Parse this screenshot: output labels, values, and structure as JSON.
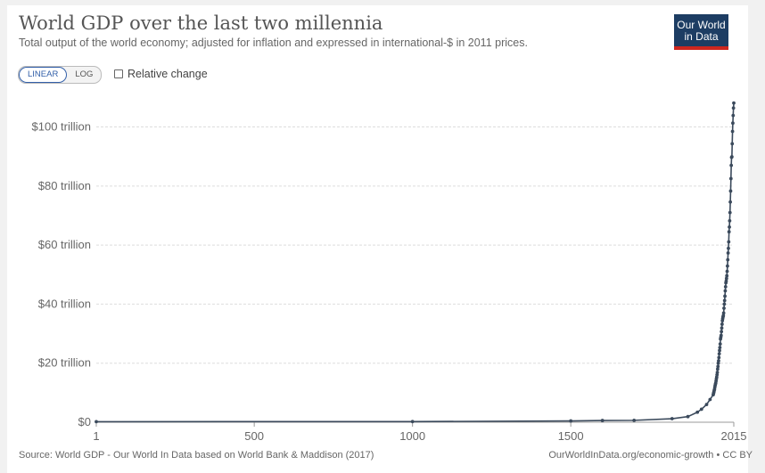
{
  "header": {
    "title": "World GDP over the last two millennia",
    "subtitle": "Total output of the world economy; adjusted for inflation and expressed in international-$ in 2011 prices.",
    "logo_line1": "Our World",
    "logo_line2": "in Data"
  },
  "controls": {
    "linear_label": "LINEAR",
    "log_label": "LOG",
    "selected_scale": "linear",
    "relative_change_label": "Relative change",
    "relative_change_checked": false
  },
  "footer": {
    "source": "Source: World GDP - Our World In Data based on World Bank & Maddison (2017)",
    "credit": "OurWorldInData.org/economic-growth • CC BY"
  },
  "colors": {
    "line": "#3b4a5c",
    "grid": "#dddddd",
    "accent": "#3360a9",
    "logo_bg": "#1d3d63",
    "logo_bar": "#ce261e"
  },
  "chart_data": {
    "type": "line",
    "title": "World GDP over the last two millennia",
    "x_scale": "linear",
    "xlim": [
      1,
      2015
    ],
    "ylim": [
      0,
      108
    ],
    "y_unit": "trillion international-$ (2011 prices)",
    "x_ticks": [
      {
        "value": 1,
        "label": "1"
      },
      {
        "value": 500,
        "label": "500"
      },
      {
        "value": 1000,
        "label": "1000"
      },
      {
        "value": 1500,
        "label": "1500"
      },
      {
        "value": 2015,
        "label": "2015"
      }
    ],
    "y_ticks": [
      {
        "value": 0,
        "label": "$0"
      },
      {
        "value": 20,
        "label": "$20 trillion"
      },
      {
        "value": 40,
        "label": "$40 trillion"
      },
      {
        "value": 60,
        "label": "$60 trillion"
      },
      {
        "value": 80,
        "label": "$80 trillion"
      },
      {
        "value": 100,
        "label": "$100 trillion"
      }
    ],
    "grid": true,
    "series": [
      {
        "x": [
          1,
          1000,
          1500,
          1600,
          1700,
          1820,
          1870,
          1900,
          1913,
          1929,
          1940,
          1950,
          1951,
          1952,
          1953,
          1954,
          1955,
          1956,
          1957,
          1958,
          1959,
          1960,
          1961,
          1962,
          1963,
          1964,
          1965,
          1966,
          1967,
          1968,
          1969,
          1970,
          1971,
          1972,
          1973,
          1974,
          1975,
          1976,
          1977,
          1978,
          1979,
          1980,
          1981,
          1982,
          1983,
          1984,
          1985,
          1986,
          1987,
          1988,
          1989,
          1990,
          1991,
          1992,
          1993,
          1994,
          1995,
          1996,
          1997,
          1998,
          1999,
          2000,
          2001,
          2002,
          2003,
          2004,
          2005,
          2006,
          2007,
          2008,
          2009,
          2010,
          2011,
          2012,
          2013,
          2014,
          2015
        ],
        "y": [
          0.18,
          0.21,
          0.43,
          0.58,
          0.64,
          1.2,
          1.9,
          3.4,
          4.4,
          6.0,
          7.7,
          9.3,
          9.8,
          10.2,
          10.7,
          11.1,
          11.8,
          12.4,
          12.9,
          13.3,
          14.0,
          14.7,
          15.3,
          16.1,
          16.9,
          18.0,
          18.9,
          20.0,
          20.8,
          21.9,
          23.2,
          24.3,
          25.3,
          26.5,
          28.2,
          28.8,
          29.4,
          30.7,
          31.9,
          33.2,
          34.4,
          35.1,
          35.7,
          36.1,
          37.0,
          38.6,
          40.0,
          41.2,
          42.7,
          44.5,
          45.9,
          47.2,
          47.8,
          48.7,
          49.6,
          51.1,
          52.9,
          55.0,
          57.3,
          58.9,
          61.1,
          64.5,
          66.1,
          68.2,
          71.0,
          74.6,
          78.3,
          82.5,
          87.0,
          89.7,
          89.9,
          94.3,
          98.5,
          101.3,
          103.9,
          106.4,
          108.1
        ]
      }
    ]
  }
}
